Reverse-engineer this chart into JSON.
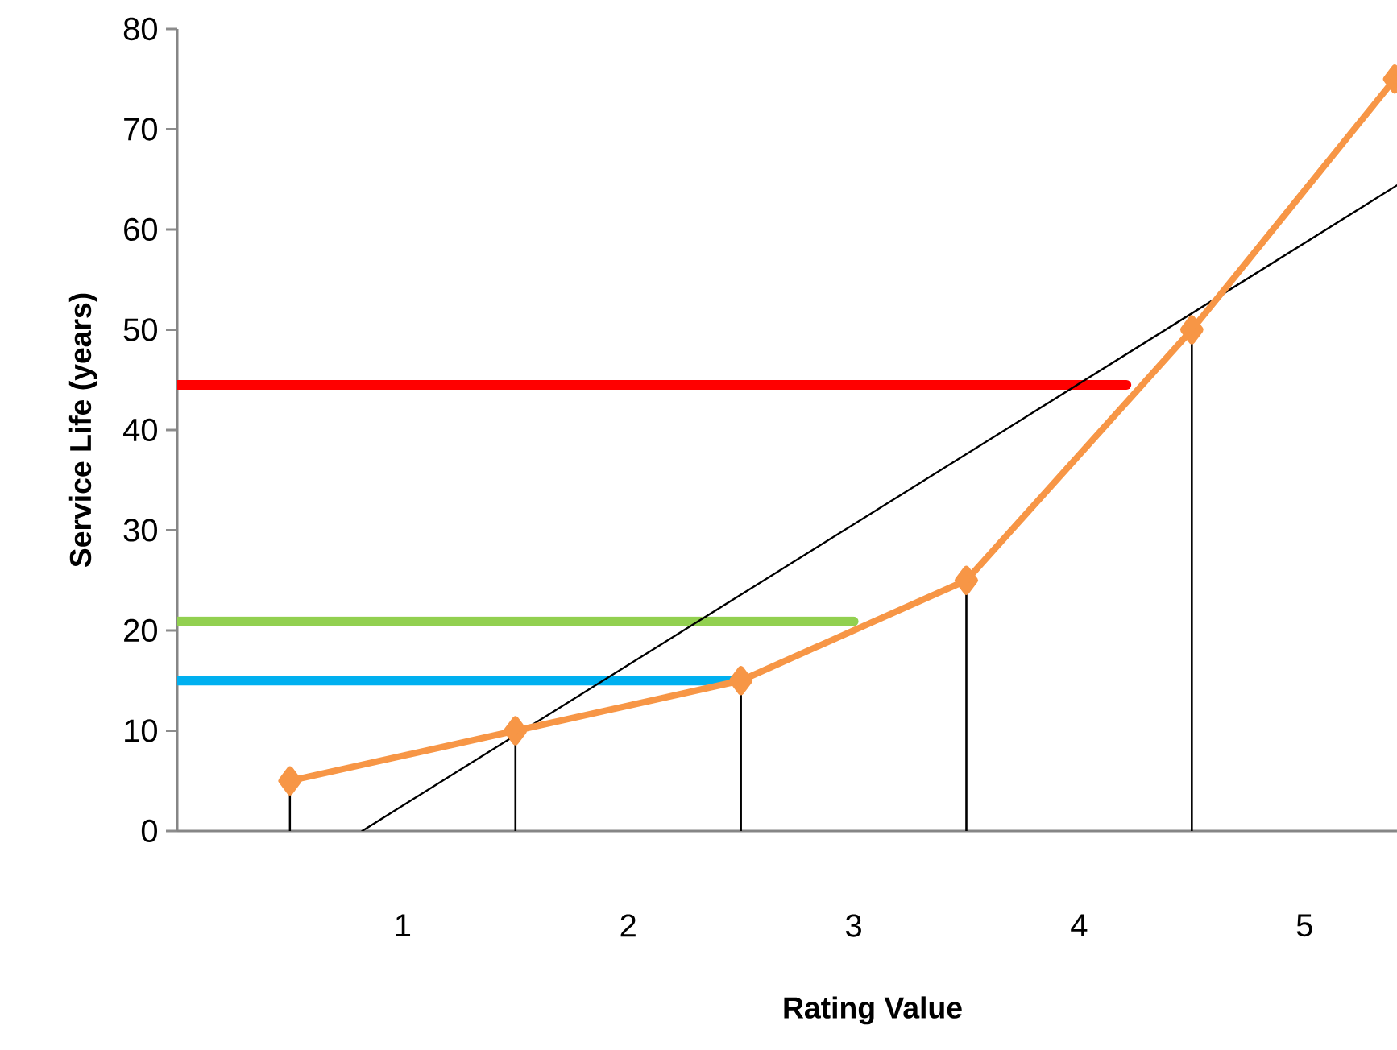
{
  "chart_data": {
    "type": "line",
    "xlabel": "Rating Value",
    "ylabel": "Service Life (years)",
    "xlim": [
      0,
      5.41
    ],
    "ylim": [
      0,
      80
    ],
    "xticks": [
      1,
      2,
      3,
      4,
      5
    ],
    "yticks": [
      0,
      10,
      20,
      30,
      40,
      50,
      60,
      70,
      80
    ],
    "grid": false,
    "series": [
      {
        "color": "#ff0000",
        "x": [
          0,
          4.21
        ],
        "values": [
          44.5,
          44.5
        ],
        "marker": "none"
      },
      {
        "color": "#92d050",
        "x": [
          0,
          3.0
        ],
        "values": [
          20.9,
          20.9
        ],
        "marker": "none"
      },
      {
        "color": "#00b0f0",
        "x": [
          0,
          2.5
        ],
        "values": [
          15,
          15
        ],
        "marker": "none"
      },
      {
        "color": "#000000",
        "x": [
          0.82,
          5.41
        ],
        "values": [
          0,
          64.4
        ],
        "marker": "none"
      },
      {
        "color": "#f79646",
        "x": [
          0.5,
          1.5,
          2.5,
          3.5,
          4.5,
          5.4
        ],
        "values": [
          5,
          10,
          15,
          25,
          50,
          75
        ],
        "marker": "diamond",
        "errors": [
          [
            0,
            5
          ],
          [
            0,
            10
          ],
          [
            0,
            15
          ],
          [
            0,
            25
          ],
          [
            0,
            50
          ],
          null
        ]
      }
    ]
  }
}
